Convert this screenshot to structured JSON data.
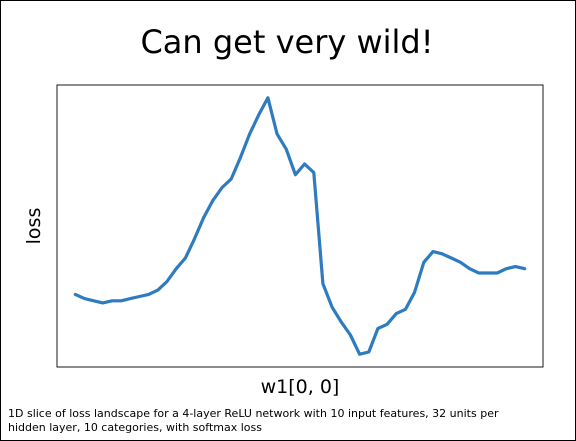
{
  "slide": {
    "title": "Can get very wild!",
    "caption": "1D slice of loss landscape for a 4-layer ReLU network with 10 input features, 32 units per hidden layer, 10 categories, with softmax loss"
  },
  "chart_data": {
    "type": "line",
    "title": "",
    "xlabel": "w1[0, 0]",
    "ylabel": "loss",
    "ticks_shown": false,
    "grid": false,
    "line_color": "#2e7bbf",
    "x": [
      0,
      1,
      2,
      3,
      4,
      5,
      6,
      7,
      8,
      9,
      10,
      11,
      12,
      13,
      14,
      15,
      16,
      17,
      18,
      19,
      20,
      21,
      22,
      23,
      24,
      25,
      26,
      27,
      28,
      29,
      30,
      31,
      32,
      33,
      34,
      35,
      36,
      37,
      38,
      39,
      40,
      41,
      42,
      43,
      44,
      45,
      46,
      47,
      48,
      49
    ],
    "y": [
      0.29,
      0.27,
      0.26,
      0.25,
      0.26,
      0.26,
      0.27,
      0.28,
      0.29,
      0.31,
      0.35,
      0.41,
      0.46,
      0.55,
      0.65,
      0.73,
      0.79,
      0.83,
      0.93,
      1.04,
      1.13,
      1.21,
      1.04,
      0.97,
      0.85,
      0.9,
      0.86,
      0.34,
      0.23,
      0.16,
      0.1,
      0.01,
      0.02,
      0.13,
      0.15,
      0.2,
      0.22,
      0.3,
      0.44,
      0.49,
      0.48,
      0.46,
      0.44,
      0.41,
      0.39,
      0.39,
      0.39,
      0.41,
      0.42,
      0.41
    ],
    "xlim": [
      -2,
      51
    ],
    "ylim": [
      -0.05,
      1.27
    ]
  }
}
